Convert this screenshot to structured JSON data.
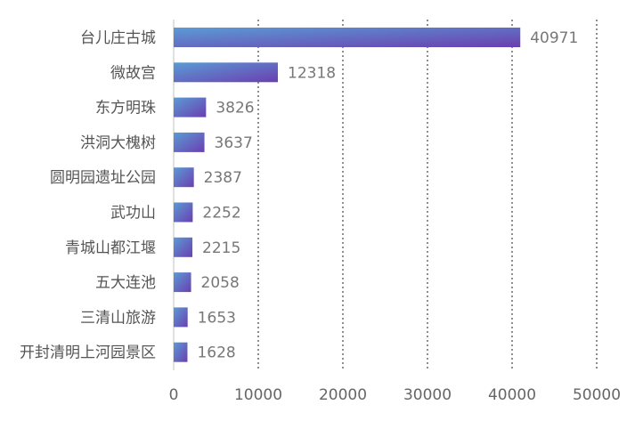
{
  "chart_data": {
    "type": "bar",
    "orientation": "horizontal",
    "categories": [
      "台儿庄古城",
      "微故宫",
      "东方明珠",
      "洪洞大槐树",
      "圆明园遗址公园",
      "武功山",
      "青城山都江堰",
      "五大连池",
      "三清山旅游",
      "开封清明上河园景区"
    ],
    "values": [
      40971,
      12318,
      3826,
      3637,
      2387,
      2252,
      2215,
      2058,
      1653,
      1628
    ],
    "xlim": [
      0,
      50000
    ],
    "xticks": [
      0,
      10000,
      20000,
      30000,
      40000,
      50000
    ],
    "grid": "vertical dotted",
    "data_labels": true,
    "bar_gradient": [
      "#5b9bd5",
      "#6a3fb0"
    ]
  }
}
